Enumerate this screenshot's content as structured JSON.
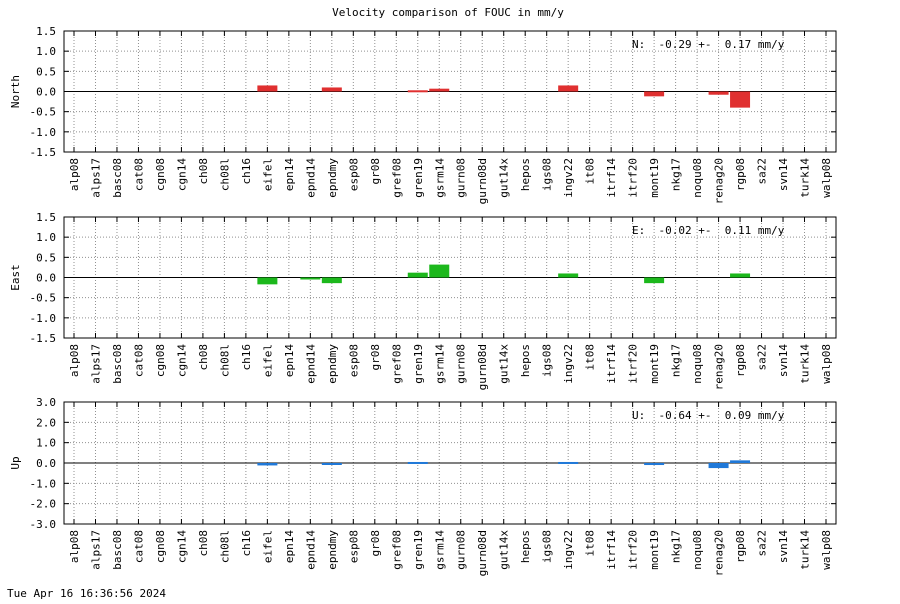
{
  "title": "Velocity comparison of FOUC in mm/y",
  "timestamp": "Tue Apr 16 16:36:56 2024",
  "colors": {
    "north": "#e03030",
    "east": "#1cb81c",
    "up": "#1f78d8",
    "grid": "#909090"
  },
  "chart_data": [
    {
      "type": "bar",
      "ylabel": "North",
      "ylim": [
        -1.5,
        1.5
      ],
      "yticks": [
        "1.5",
        "1.0",
        "0.5",
        "0.0",
        "-0.5",
        "-1.0",
        "-1.5"
      ],
      "stat": "N:  -0.29 +-  0.17 mm/y",
      "categories": [
        "alp08",
        "alps17",
        "basc08",
        "cat08",
        "cgn08",
        "cgn14",
        "ch08",
        "ch08l",
        "ch16",
        "eifel",
        "epn14",
        "epnd14",
        "epndmy",
        "esp08",
        "gr08",
        "gref08",
        "gren19",
        "gsrm14",
        "gurn08",
        "gurn08d",
        "gut14x",
        "hepos",
        "igs08",
        "ingv22",
        "it08",
        "itrf14",
        "itrf20",
        "mont19",
        "nkg17",
        "noqu08",
        "renag20",
        "rgp08",
        "sa22",
        "svn14",
        "turk14",
        "walp08"
      ],
      "values": [
        0,
        0,
        0,
        0,
        0,
        0,
        0,
        0,
        0,
        0.15,
        0,
        0,
        0.1,
        0,
        0,
        0,
        0.03,
        0.07,
        0,
        0,
        0,
        0,
        0,
        0.15,
        0,
        0,
        0,
        -0.12,
        0,
        0,
        -0.08,
        -0.4,
        0,
        0,
        0,
        0
      ],
      "grid": true
    },
    {
      "type": "bar",
      "ylabel": "East",
      "ylim": [
        -1.5,
        1.5
      ],
      "yticks": [
        "1.5",
        "1.0",
        "0.5",
        "0.0",
        "-0.5",
        "-1.0",
        "-1.5"
      ],
      "stat": "E:  -0.02 +-  0.11 mm/y",
      "categories": [
        "alp08",
        "alps17",
        "basc08",
        "cat08",
        "cgn08",
        "cgn14",
        "ch08",
        "ch08l",
        "ch16",
        "eifel",
        "epn14",
        "epnd14",
        "epndmy",
        "esp08",
        "gr08",
        "gref08",
        "gren19",
        "gsrm14",
        "gurn08",
        "gurn08d",
        "gut14x",
        "hepos",
        "igs08",
        "ingv22",
        "it08",
        "itrf14",
        "itrf20",
        "mont19",
        "nkg17",
        "noqu08",
        "renag20",
        "rgp08",
        "sa22",
        "svn14",
        "turk14",
        "walp08"
      ],
      "values": [
        0,
        0,
        0,
        0,
        0,
        0,
        0,
        0,
        0,
        -0.17,
        0,
        -0.03,
        -0.14,
        0,
        0,
        0,
        0.12,
        0.32,
        0,
        0,
        0,
        0,
        0,
        0.1,
        0,
        0,
        0,
        -0.14,
        0,
        0,
        0,
        0.1,
        0,
        0,
        0,
        0
      ],
      "grid": true
    },
    {
      "type": "bar",
      "ylabel": "Up",
      "ylim": [
        -3.0,
        3.0
      ],
      "yticks": [
        "3.0",
        "2.0",
        "1.0",
        "0.0",
        "-1.0",
        "-2.0",
        "-3.0"
      ],
      "stat": "U:  -0.64 +-  0.09 mm/y",
      "categories": [
        "alp08",
        "alps17",
        "basc08",
        "cat08",
        "cgn08",
        "cgn14",
        "ch08",
        "ch08l",
        "ch16",
        "eifel",
        "epn14",
        "epnd14",
        "epndmy",
        "esp08",
        "gr08",
        "gref08",
        "gren19",
        "gsrm14",
        "gurn08",
        "gurn08d",
        "gut14x",
        "hepos",
        "igs08",
        "ingv22",
        "it08",
        "itrf14",
        "itrf20",
        "mont19",
        "nkg17",
        "noqu08",
        "renag20",
        "rgp08",
        "sa22",
        "svn14",
        "turk14",
        "walp08"
      ],
      "values": [
        0,
        0,
        0,
        0,
        0,
        0,
        0,
        0,
        0,
        -0.12,
        0,
        0,
        -0.07,
        0,
        0,
        0,
        0.05,
        0,
        0,
        0,
        0,
        0,
        0,
        0.05,
        0,
        0,
        0,
        -0.1,
        0,
        0,
        -0.25,
        0.13,
        0,
        0,
        0,
        0
      ],
      "grid": true
    }
  ]
}
